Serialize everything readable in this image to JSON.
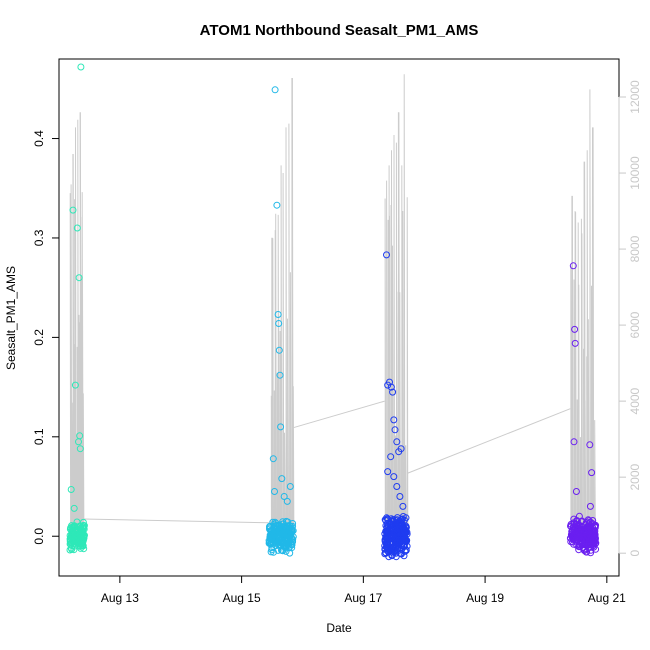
{
  "chart_data": {
    "type": "scatter",
    "title": "ATOM1 Northbound Seasalt_PM1_AMS",
    "xlabel": "Date",
    "ylabel": "Seasalt_PM1_AMS",
    "x_ticks": [
      {
        "day": 13,
        "label": "Aug 13"
      },
      {
        "day": 15,
        "label": "Aug 15"
      },
      {
        "day": 17,
        "label": "Aug 17"
      },
      {
        "day": 19,
        "label": "Aug 19"
      },
      {
        "day": 21,
        "label": "Aug 21"
      }
    ],
    "xlim": [
      12.0,
      21.2
    ],
    "ylim": [
      -0.04,
      0.48
    ],
    "y_ticks": [
      0.0,
      0.1,
      0.2,
      0.3,
      0.4
    ],
    "y_tick_labels": [
      "0.0",
      "0.1",
      "0.2",
      "0.3",
      "0.4"
    ],
    "y2_ticks": [
      0,
      2000,
      4000,
      6000,
      8000,
      10000,
      12000
    ],
    "y2_tick_labels": [
      "0",
      "2000",
      "4000",
      "6000",
      "8000",
      "10000",
      "12000"
    ],
    "y2lim": [
      -600,
      13000
    ],
    "y2_color": "#c8c8c8",
    "series": [
      {
        "color": "#2ee8b8",
        "x": [
          12.2,
          12.23,
          12.25,
          12.27,
          12.3,
          12.32,
          12.33,
          12.34,
          12.35,
          12.36
        ],
        "y": [
          0.047,
          0.328,
          0.028,
          0.152,
          0.31,
          0.095,
          0.26,
          0.101,
          0.088,
          0.472
        ],
        "spread": {
          "x_from": 12.18,
          "x_to": 12.42,
          "y_from": -0.015,
          "y_to": 0.015,
          "count": 140
        }
      },
      {
        "color": "#21b8e8",
        "x": [
          15.52,
          15.54,
          15.55,
          15.58,
          15.6,
          15.61,
          15.62,
          15.63,
          15.64,
          15.66,
          15.7,
          15.75,
          15.8
        ],
        "y": [
          0.078,
          0.045,
          0.449,
          0.333,
          0.223,
          0.214,
          0.187,
          0.162,
          0.11,
          0.058,
          0.04,
          0.035,
          0.05
        ],
        "spread": {
          "x_from": 15.45,
          "x_to": 15.85,
          "y_from": -0.018,
          "y_to": 0.018,
          "count": 190
        }
      },
      {
        "color": "#1f3cf0",
        "x": [
          17.38,
          17.4,
          17.43,
          17.46,
          17.48,
          17.5,
          17.52,
          17.55,
          17.58,
          17.62,
          17.4,
          17.45,
          17.5,
          17.55,
          17.6,
          17.65
        ],
        "y": [
          0.283,
          0.152,
          0.155,
          0.15,
          0.145,
          0.117,
          0.107,
          0.095,
          0.085,
          0.088,
          0.065,
          0.08,
          0.06,
          0.05,
          0.04,
          0.03
        ],
        "spread": {
          "x_from": 17.35,
          "x_to": 17.72,
          "y_from": -0.022,
          "y_to": 0.022,
          "count": 260
        }
      },
      {
        "color": "#6a1ff0",
        "x": [
          20.45,
          20.47,
          20.48,
          20.46,
          20.5,
          20.72,
          20.75,
          20.73,
          20.55
        ],
        "y": [
          0.272,
          0.208,
          0.194,
          0.095,
          0.045,
          0.092,
          0.064,
          0.03,
          0.02
        ],
        "spread": {
          "x_from": 20.4,
          "x_to": 20.82,
          "y_from": -0.018,
          "y_to": 0.018,
          "count": 220
        }
      }
    ],
    "secondary_line": {
      "color": "#cccccc",
      "segments": [
        {
          "x_from": 12.18,
          "x_to": 12.4,
          "peaks": [
            {
              "x": 12.2,
              "y": 9700
            },
            {
              "x": 12.23,
              "y": 10500
            },
            {
              "x": 12.27,
              "y": 11200
            },
            {
              "x": 12.31,
              "y": 11400
            },
            {
              "x": 12.35,
              "y": 11600
            },
            {
              "x": 12.38,
              "y": 9500
            }
          ]
        },
        {
          "x_from": 15.48,
          "x_to": 15.85,
          "peaks": [
            {
              "x": 15.5,
              "y": 8300
            },
            {
              "x": 15.55,
              "y": 8500
            },
            {
              "x": 15.6,
              "y": 8900
            },
            {
              "x": 15.65,
              "y": 10200
            },
            {
              "x": 15.68,
              "y": 10000
            },
            {
              "x": 15.73,
              "y": 11200
            },
            {
              "x": 15.78,
              "y": 11300
            },
            {
              "x": 15.83,
              "y": 12500
            }
          ]
        },
        {
          "x_from": 17.35,
          "x_to": 17.72,
          "peaks": [
            {
              "x": 17.38,
              "y": 9800
            },
            {
              "x": 17.42,
              "y": 10200
            },
            {
              "x": 17.46,
              "y": 10600
            },
            {
              "x": 17.5,
              "y": 11000
            },
            {
              "x": 17.54,
              "y": 10800
            },
            {
              "x": 17.58,
              "y": 11600
            },
            {
              "x": 17.63,
              "y": 10200
            },
            {
              "x": 17.67,
              "y": 12600
            }
          ]
        },
        {
          "x_from": 20.4,
          "x_to": 20.8,
          "peaks": [
            {
              "x": 20.43,
              "y": 9400
            },
            {
              "x": 20.48,
              "y": 9000
            },
            {
              "x": 20.53,
              "y": 8700
            },
            {
              "x": 20.58,
              "y": 8800
            },
            {
              "x": 20.63,
              "y": 10300
            },
            {
              "x": 20.68,
              "y": 10600
            },
            {
              "x": 20.72,
              "y": 12200
            },
            {
              "x": 20.77,
              "y": 11200
            }
          ]
        }
      ],
      "connectors": [
        {
          "x": [
            12.4,
            15.45
          ],
          "y": [
            900,
            800
          ]
        },
        {
          "x": [
            15.85,
            17.35
          ],
          "y": [
            3300,
            4000
          ]
        },
        {
          "x": [
            17.72,
            20.4
          ],
          "y": [
            2100,
            3800
          ]
        }
      ]
    }
  }
}
